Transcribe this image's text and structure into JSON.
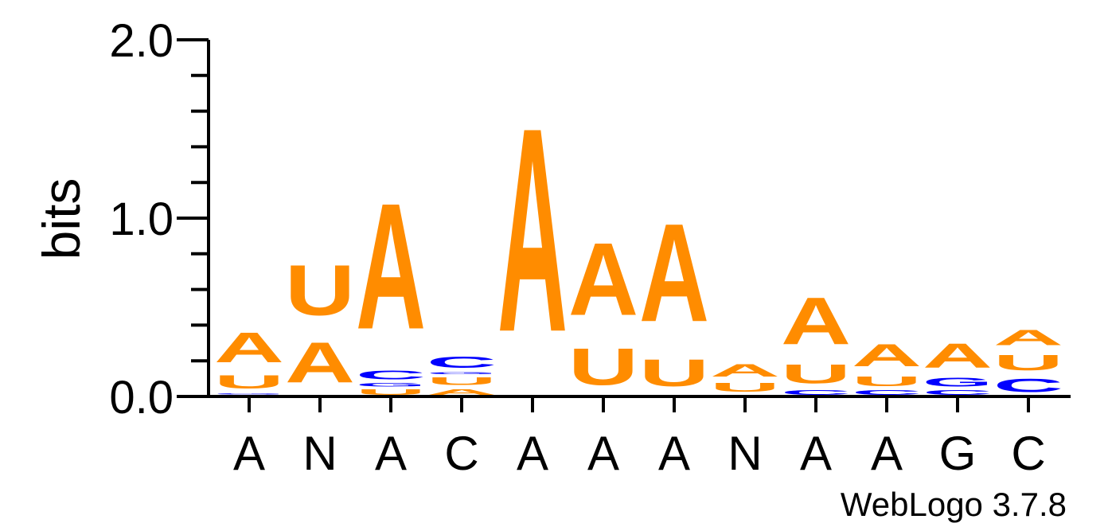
{
  "chart_data": {
    "type": "sequence-logo",
    "ylabel": "bits",
    "ylim": [
      0,
      2.0
    ],
    "yticks": [
      {
        "value": 0.0,
        "label": "0.0"
      },
      {
        "value": 1.0,
        "label": "1.0"
      },
      {
        "value": 2.0,
        "label": "2.0"
      }
    ],
    "minor_tick_step": 0.2,
    "credit": "WebLogo 3.7.8",
    "colors": {
      "A": "#ff8c00",
      "U": "#ff8c00",
      "C": "#0000ff",
      "G": "#0000ff"
    },
    "positions": [
      {
        "consensus": "A",
        "stack": [
          {
            "letter": "C",
            "bits": 0.01
          },
          {
            "letter": "G",
            "bits": 0.01
          },
          {
            "letter": "U",
            "bits": 0.12
          },
          {
            "letter": "A",
            "bits": 0.27
          }
        ]
      },
      {
        "consensus": "N",
        "stack": [
          {
            "letter": "C",
            "bits": 0.01
          },
          {
            "letter": "A",
            "bits": 0.36
          },
          {
            "letter": "U",
            "bits": 0.45
          }
        ]
      },
      {
        "consensus": "A",
        "stack": [
          {
            "letter": "U",
            "bits": 0.05
          },
          {
            "letter": "G",
            "bits": 0.03
          },
          {
            "letter": "C",
            "bits": 0.08
          },
          {
            "letter": "A",
            "bits": 1.13
          }
        ]
      },
      {
        "consensus": "C",
        "stack": [
          {
            "letter": "A",
            "bits": 0.05
          },
          {
            "letter": "U",
            "bits": 0.07
          },
          {
            "letter": "G",
            "bits": 0.02
          },
          {
            "letter": "C",
            "bits": 0.1
          }
        ]
      },
      {
        "consensus": "A",
        "stack": [
          {
            "letter": "C",
            "bits": 0.01
          },
          {
            "letter": "A",
            "bits": 1.83
          }
        ]
      },
      {
        "consensus": "A",
        "stack": [
          {
            "letter": "U",
            "bits": 0.33
          },
          {
            "letter": "A",
            "bits": 0.65
          }
        ]
      },
      {
        "consensus": "A",
        "stack": [
          {
            "letter": "C",
            "bits": 0.01
          },
          {
            "letter": "U",
            "bits": 0.24
          },
          {
            "letter": "A",
            "bits": 0.88
          }
        ]
      },
      {
        "consensus": "N",
        "stack": [
          {
            "letter": "C",
            "bits": 0.01
          },
          {
            "letter": "U",
            "bits": 0.08
          },
          {
            "letter": "A",
            "bits": 0.11
          }
        ]
      },
      {
        "consensus": "A",
        "stack": [
          {
            "letter": "C",
            "bits": 0.04
          },
          {
            "letter": "U",
            "bits": 0.17
          },
          {
            "letter": "A",
            "bits": 0.42
          }
        ]
      },
      {
        "consensus": "A",
        "stack": [
          {
            "letter": "C",
            "bits": 0.04
          },
          {
            "letter": "U",
            "bits": 0.09
          },
          {
            "letter": "A",
            "bits": 0.2
          }
        ]
      },
      {
        "consensus": "G",
        "stack": [
          {
            "letter": "C",
            "bits": 0.04
          },
          {
            "letter": "G",
            "bits": 0.08
          },
          {
            "letter": "A",
            "bits": 0.22
          }
        ]
      },
      {
        "consensus": "C",
        "stack": [
          {
            "letter": "C",
            "bits": 0.12
          },
          {
            "letter": "U",
            "bits": 0.14
          },
          {
            "letter": "A",
            "bits": 0.14
          }
        ]
      }
    ]
  }
}
